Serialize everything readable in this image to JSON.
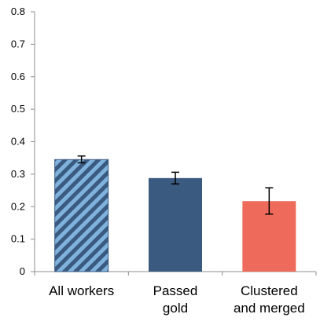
{
  "chart_data": {
    "type": "bar",
    "title": "",
    "xlabel": "",
    "ylabel": "",
    "ylim": [
      0,
      0.8
    ],
    "yticks": [
      "0",
      "0.1",
      "0.2",
      "0.3",
      "0.4",
      "0.5",
      "0.6",
      "0.7",
      "0.8"
    ],
    "grid": false,
    "legend": "none",
    "categories": [
      [
        "All workers"
      ],
      [
        "Passed",
        "gold"
      ],
      [
        "Clustered",
        "and merged"
      ]
    ],
    "values": [
      0.345,
      0.288,
      0.217
    ],
    "error_low": [
      0.335,
      0.27,
      0.177
    ],
    "error_high": [
      0.356,
      0.306,
      0.258
    ],
    "bar_styles": [
      "hatched",
      "solid",
      "solid"
    ],
    "colors": [
      "#3b5a80",
      "#3b5a80",
      "#ee6b5b"
    ],
    "hatch_light": "#7fb3de"
  }
}
